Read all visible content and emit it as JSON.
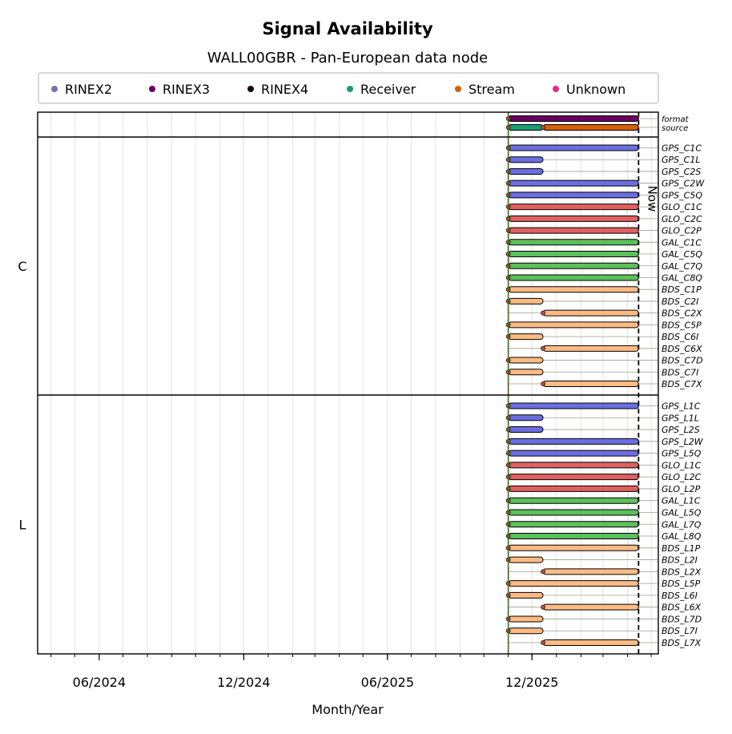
{
  "chart_data": {
    "type": "timeline",
    "title": "Signal Availability",
    "subtitle": "WALL00GBR - Pan-European data node",
    "xlabel": "Month/Year",
    "x_ticks": [
      {
        "date": "2024-06-01",
        "label": "06/2024"
      },
      {
        "date": "2024-12-01",
        "label": "12/2024"
      },
      {
        "date": "2025-06-01",
        "label": "06/2025"
      },
      {
        "date": "2025-12-01",
        "label": "12/2025"
      }
    ],
    "xlim": [
      "2024-03-15",
      "2026-05-10"
    ],
    "now": {
      "date": "2026-04-15",
      "label": "Now"
    },
    "start_marker": "2025-11-01",
    "grid": true,
    "legend": {
      "position": "top",
      "entries": [
        {
          "name": "RINEX2",
          "color": "#7570b3"
        },
        {
          "name": "RINEX3",
          "color": "#6a0060"
        },
        {
          "name": "RINEX4",
          "color": "#200018"
        },
        {
          "name": "Receiver",
          "color": "#1b9e77"
        },
        {
          "name": "Stream",
          "color": "#d95f02"
        },
        {
          "name": "Unknown",
          "color": "#e7298a"
        }
      ]
    },
    "meta_rows": [
      {
        "label": "format",
        "segments": [
          {
            "start": "2025-11-01",
            "end": "2026-04-15",
            "color": "#6a0060"
          }
        ]
      },
      {
        "label": "source",
        "segments": [
          {
            "start": "2025-11-01",
            "end": "2025-12-15",
            "color": "#1b9e77"
          },
          {
            "start": "2025-12-15",
            "end": "2026-04-15",
            "color": "#d95f02"
          }
        ]
      }
    ],
    "groups": [
      {
        "name": "C",
        "signals": [
          {
            "label": "GPS_C1C",
            "start": "2025-11-01",
            "end": "2026-04-15",
            "color": "#6b6ee0"
          },
          {
            "label": "GPS_C1L",
            "start": "2025-11-01",
            "end": "2025-12-15",
            "color": "#6b6ee0"
          },
          {
            "label": "GPS_C2S",
            "start": "2025-11-01",
            "end": "2025-12-15",
            "color": "#6b6ee0"
          },
          {
            "label": "GPS_C2W",
            "start": "2025-11-01",
            "end": "2026-04-15",
            "color": "#6b6ee0"
          },
          {
            "label": "GPS_C5Q",
            "start": "2025-11-01",
            "end": "2026-04-15",
            "color": "#6b6ee0"
          },
          {
            "label": "GLO_C1C",
            "start": "2025-11-01",
            "end": "2026-04-15",
            "color": "#e06060"
          },
          {
            "label": "GLO_C2C",
            "start": "2025-11-01",
            "end": "2026-04-15",
            "color": "#e06060"
          },
          {
            "label": "GLO_C2P",
            "start": "2025-11-01",
            "end": "2026-04-15",
            "color": "#e06060"
          },
          {
            "label": "GAL_C1C",
            "start": "2025-11-01",
            "end": "2026-04-15",
            "color": "#5cc05c"
          },
          {
            "label": "GAL_C5Q",
            "start": "2025-11-01",
            "end": "2026-04-15",
            "color": "#5cc05c"
          },
          {
            "label": "GAL_C7Q",
            "start": "2025-11-01",
            "end": "2026-04-15",
            "color": "#5cc05c"
          },
          {
            "label": "GAL_C8Q",
            "start": "2025-11-01",
            "end": "2026-04-15",
            "color": "#5cc05c"
          },
          {
            "label": "BDS_C1P",
            "start": "2025-11-01",
            "end": "2026-04-15",
            "color": "#fdbb84"
          },
          {
            "label": "BDS_C2I",
            "start": "2025-11-01",
            "end": "2025-12-15",
            "color": "#fdbb84"
          },
          {
            "label": "BDS_C2X",
            "start": "2025-12-15",
            "end": "2026-04-15",
            "color": "#fdbb84"
          },
          {
            "label": "BDS_C5P",
            "start": "2025-11-01",
            "end": "2026-04-15",
            "color": "#fdbb84"
          },
          {
            "label": "BDS_C6I",
            "start": "2025-11-01",
            "end": "2025-12-15",
            "color": "#fdbb84"
          },
          {
            "label": "BDS_C6X",
            "start": "2025-12-15",
            "end": "2026-04-15",
            "color": "#fdbb84"
          },
          {
            "label": "BDS_C7D",
            "start": "2025-11-01",
            "end": "2025-12-15",
            "color": "#fdbb84"
          },
          {
            "label": "BDS_C7I",
            "start": "2025-11-01",
            "end": "2025-12-15",
            "color": "#fdbb84"
          },
          {
            "label": "BDS_C7X",
            "start": "2025-12-15",
            "end": "2026-04-15",
            "color": "#fdbb84"
          }
        ]
      },
      {
        "name": "L",
        "signals": [
          {
            "label": "GPS_L1C",
            "start": "2025-11-01",
            "end": "2026-04-15",
            "color": "#6b6ee0"
          },
          {
            "label": "GPS_L1L",
            "start": "2025-11-01",
            "end": "2025-12-15",
            "color": "#6b6ee0"
          },
          {
            "label": "GPS_L2S",
            "start": "2025-11-01",
            "end": "2025-12-15",
            "color": "#6b6ee0"
          },
          {
            "label": "GPS_L2W",
            "start": "2025-11-01",
            "end": "2026-04-15",
            "color": "#6b6ee0"
          },
          {
            "label": "GPS_L5Q",
            "start": "2025-11-01",
            "end": "2026-04-15",
            "color": "#6b6ee0"
          },
          {
            "label": "GLO_L1C",
            "start": "2025-11-01",
            "end": "2026-04-15",
            "color": "#e06060"
          },
          {
            "label": "GLO_L2C",
            "start": "2025-11-01",
            "end": "2026-04-15",
            "color": "#e06060"
          },
          {
            "label": "GLO_L2P",
            "start": "2025-11-01",
            "end": "2026-04-15",
            "color": "#e06060"
          },
          {
            "label": "GAL_L1C",
            "start": "2025-11-01",
            "end": "2026-04-15",
            "color": "#5cc05c"
          },
          {
            "label": "GAL_L5Q",
            "start": "2025-11-01",
            "end": "2026-04-15",
            "color": "#5cc05c"
          },
          {
            "label": "GAL_L7Q",
            "start": "2025-11-01",
            "end": "2026-04-15",
            "color": "#5cc05c"
          },
          {
            "label": "GAL_L8Q",
            "start": "2025-11-01",
            "end": "2026-04-15",
            "color": "#5cc05c"
          },
          {
            "label": "BDS_L1P",
            "start": "2025-11-01",
            "end": "2026-04-15",
            "color": "#fdbb84"
          },
          {
            "label": "BDS_L2I",
            "start": "2025-11-01",
            "end": "2025-12-15",
            "color": "#fdbb84"
          },
          {
            "label": "BDS_L2X",
            "start": "2025-12-15",
            "end": "2026-04-15",
            "color": "#fdbb84"
          },
          {
            "label": "BDS_L5P",
            "start": "2025-11-01",
            "end": "2026-04-15",
            "color": "#fdbb84"
          },
          {
            "label": "BDS_L6I",
            "start": "2025-11-01",
            "end": "2025-12-15",
            "color": "#fdbb84"
          },
          {
            "label": "BDS_L6X",
            "start": "2025-12-15",
            "end": "2026-04-15",
            "color": "#fdbb84"
          },
          {
            "label": "BDS_L7D",
            "start": "2025-11-01",
            "end": "2025-12-15",
            "color": "#fdbb84"
          },
          {
            "label": "BDS_L7I",
            "start": "2025-11-01",
            "end": "2025-12-15",
            "color": "#fdbb84"
          },
          {
            "label": "BDS_L7X",
            "start": "2025-12-15",
            "end": "2026-04-15",
            "color": "#fdbb84"
          }
        ]
      }
    ]
  }
}
